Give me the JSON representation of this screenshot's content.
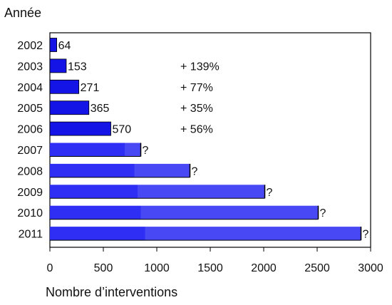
{
  "chart_data": {
    "type": "bar",
    "orientation": "horizontal",
    "title": "",
    "ylabel": "Année",
    "xlabel": "Nombre d’interventions",
    "categories": [
      "2002",
      "2003",
      "2004",
      "2005",
      "2006",
      "2007",
      "2008",
      "2009",
      "2010",
      "2011"
    ],
    "values": [
      64,
      153,
      271,
      365,
      570,
      850,
      1310,
      2010,
      2510,
      2910
    ],
    "value_labels": [
      "64",
      "153",
      "271",
      "365",
      "570",
      "?",
      "?",
      "?",
      "?",
      "?"
    ],
    "projected_from_index": 5,
    "projected_base_values": [
      null,
      null,
      null,
      null,
      null,
      700,
      790,
      820,
      850,
      890
    ],
    "growth_labels": [
      "",
      "+ 139%",
      "+ 77%",
      "+ 35%",
      "+ 56%",
      "",
      "",
      "",
      "",
      ""
    ],
    "xlim": [
      0,
      3000
    ],
    "xticks": [
      "0",
      "500",
      "1000",
      "1500",
      "2000",
      "2500",
      "3000"
    ],
    "grid": false,
    "colors": {
      "actual": "#1414e6",
      "projected_base": "#2e2ef4",
      "projected_extension": "#4848f4",
      "bar_outline": "#000000"
    }
  }
}
